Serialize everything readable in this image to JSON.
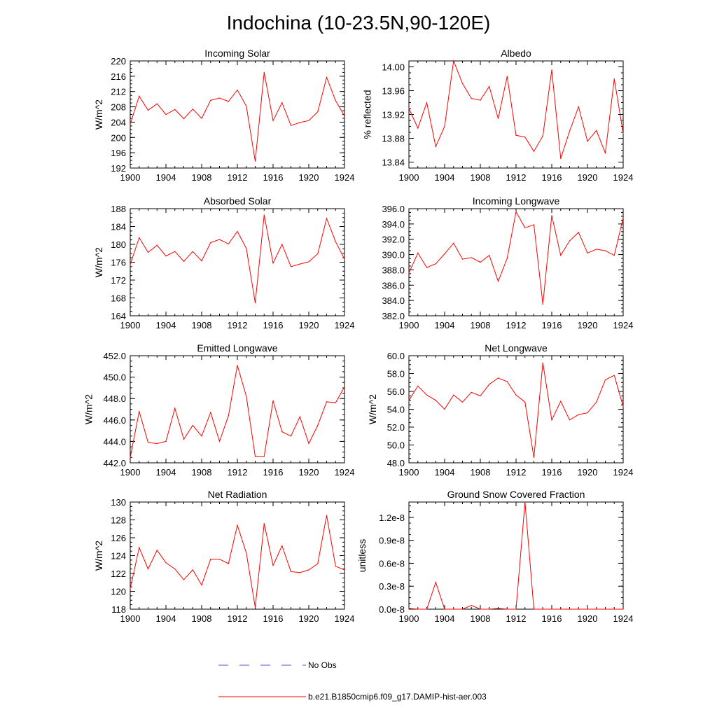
{
  "figure": {
    "title": "Indochina (10-23.5N,90-120E)",
    "legend": [
      {
        "label": "No Obs",
        "color": "#4a5bd6",
        "style": "dashed"
      },
      {
        "label": "b.e21.B1850cmip6.f09_g17.DAMIP-hist-aer.003",
        "color": "#ff0000",
        "style": "solid"
      }
    ],
    "line_color": "#ff0000"
  },
  "chart_data": [
    {
      "type": "line",
      "title": "Incoming Solar",
      "ylabel": "W/m^2",
      "xlim": [
        1900,
        1924
      ],
      "ylim": [
        192,
        220
      ],
      "xticks": [
        "1900",
        "1904",
        "1908",
        "1912",
        "1916",
        "1920",
        "1924"
      ],
      "yticks": [
        "192",
        "196",
        "200",
        "204",
        "208",
        "212",
        "216",
        "220"
      ],
      "series": [
        {
          "x": [
            1900,
            1901,
            1902,
            1903,
            1904,
            1905,
            1906,
            1907,
            1908,
            1909,
            1910,
            1911,
            1912,
            1913,
            1914,
            1915,
            1916,
            1917,
            1918,
            1919,
            1920,
            1921,
            1922,
            1923,
            1924
          ],
          "values": [
            203.5,
            210.8,
            207.1,
            208.8,
            206.0,
            207.3,
            204.9,
            207.4,
            205.0,
            209.7,
            210.3,
            209.4,
            212.4,
            208.2,
            193.8,
            217.0,
            204.4,
            209.1,
            203.1,
            203.9,
            204.4,
            206.7,
            215.7,
            209.6,
            205.6
          ]
        }
      ]
    },
    {
      "type": "line",
      "title": "Albedo",
      "ylabel": "% reflected",
      "xlim": [
        1900,
        1924
      ],
      "ylim": [
        13.83,
        14.01
      ],
      "xticks": [
        "1900",
        "1904",
        "1908",
        "1912",
        "1916",
        "1920",
        "1924"
      ],
      "yticks": [
        "13.84",
        "13.88",
        "13.92",
        "13.96",
        "14.00"
      ],
      "series": [
        {
          "x": [
            1900,
            1901,
            1902,
            1903,
            1904,
            1905,
            1906,
            1907,
            1908,
            1909,
            1910,
            1911,
            1912,
            1913,
            1914,
            1915,
            1916,
            1917,
            1918,
            1919,
            1920,
            1921,
            1922,
            1923,
            1924
          ],
          "values": [
            13.93,
            13.897,
            13.94,
            13.866,
            13.9,
            14.01,
            13.972,
            13.947,
            13.944,
            13.967,
            13.913,
            13.984,
            13.885,
            13.882,
            13.858,
            13.884,
            13.995,
            13.846,
            13.892,
            13.933,
            13.875,
            13.893,
            13.855,
            13.98,
            13.888
          ]
        }
      ]
    },
    {
      "type": "line",
      "title": "Absorbed Solar",
      "ylabel": "W/m^2",
      "xlim": [
        1900,
        1924
      ],
      "ylim": [
        164,
        188
      ],
      "xticks": [
        "1900",
        "1904",
        "1908",
        "1912",
        "1916",
        "1920",
        "1924"
      ],
      "yticks": [
        "164",
        "168",
        "172",
        "176",
        "180",
        "184",
        "188"
      ],
      "series": [
        {
          "x": [
            1900,
            1901,
            1902,
            1903,
            1904,
            1905,
            1906,
            1907,
            1908,
            1909,
            1910,
            1911,
            1912,
            1913,
            1914,
            1915,
            1916,
            1917,
            1918,
            1919,
            1920,
            1921,
            1922,
            1923,
            1924
          ],
          "values": [
            175.5,
            181.5,
            178.2,
            179.8,
            177.4,
            178.4,
            176.2,
            178.4,
            176.3,
            180.4,
            181.1,
            180.1,
            182.9,
            179.1,
            166.9,
            186.6,
            175.8,
            180.0,
            175.0,
            175.6,
            176.1,
            177.9,
            185.8,
            180.6,
            176.7
          ]
        }
      ]
    },
    {
      "type": "line",
      "title": "Incoming Longwave",
      "ylabel": "",
      "xlim": [
        1900,
        1924
      ],
      "ylim": [
        382,
        396
      ],
      "xticks": [
        "1900",
        "1904",
        "1908",
        "1912",
        "1916",
        "1920",
        "1924"
      ],
      "yticks": [
        "382.0",
        "384.0",
        "386.0",
        "388.0",
        "390.0",
        "392.0",
        "394.0",
        "396.0"
      ],
      "series": [
        {
          "x": [
            1900,
            1901,
            1902,
            1903,
            1904,
            1905,
            1906,
            1907,
            1908,
            1909,
            1910,
            1911,
            1912,
            1913,
            1914,
            1915,
            1916,
            1917,
            1918,
            1919,
            1920,
            1921,
            1922,
            1923,
            1924
          ],
          "values": [
            387.6,
            390.2,
            388.3,
            388.8,
            390.1,
            391.5,
            389.4,
            389.6,
            389.0,
            389.9,
            386.5,
            389.5,
            395.6,
            393.5,
            393.9,
            383.5,
            395.1,
            389.9,
            391.8,
            392.9,
            390.2,
            390.7,
            390.5,
            389.9,
            394.8
          ]
        }
      ]
    },
    {
      "type": "line",
      "title": "Emitted Longwave",
      "ylabel": "W/m^2",
      "xlim": [
        1900,
        1924
      ],
      "ylim": [
        442,
        452
      ],
      "xticks": [
        "1900",
        "1904",
        "1908",
        "1912",
        "1916",
        "1920",
        "1924"
      ],
      "yticks": [
        "442.0",
        "444.0",
        "446.0",
        "448.0",
        "450.0",
        "452.0"
      ],
      "series": [
        {
          "x": [
            1900,
            1901,
            1902,
            1903,
            1904,
            1905,
            1906,
            1907,
            1908,
            1909,
            1910,
            1911,
            1912,
            1913,
            1914,
            1915,
            1916,
            1917,
            1918,
            1919,
            1920,
            1921,
            1922,
            1923,
            1924
          ],
          "values": [
            442.5,
            446.8,
            443.9,
            443.8,
            444.0,
            447.1,
            444.2,
            445.5,
            444.5,
            446.7,
            444.0,
            446.4,
            451.1,
            448.2,
            442.6,
            442.6,
            447.8,
            444.9,
            444.5,
            446.3,
            443.8,
            445.5,
            447.7,
            447.6,
            449.1
          ]
        }
      ]
    },
    {
      "type": "line",
      "title": "Net Longwave",
      "ylabel": "W/m^2",
      "xlim": [
        1900,
        1924
      ],
      "ylim": [
        48,
        60
      ],
      "xticks": [
        "1900",
        "1904",
        "1908",
        "1912",
        "1916",
        "1920",
        "1924"
      ],
      "yticks": [
        "48.0",
        "50.0",
        "52.0",
        "54.0",
        "56.0",
        "58.0",
        "60.0"
      ],
      "series": [
        {
          "x": [
            1900,
            1901,
            1902,
            1903,
            1904,
            1905,
            1906,
            1907,
            1908,
            1909,
            1910,
            1911,
            1912,
            1913,
            1914,
            1915,
            1916,
            1917,
            1918,
            1919,
            1920,
            1921,
            1922,
            1923,
            1924
          ],
          "values": [
            55.0,
            56.6,
            55.6,
            55.0,
            54.0,
            55.6,
            54.8,
            55.9,
            55.5,
            56.8,
            57.5,
            57.1,
            55.6,
            54.8,
            48.6,
            59.2,
            52.8,
            54.9,
            52.8,
            53.4,
            53.6,
            54.8,
            57.3,
            57.8,
            54.3
          ]
        }
      ]
    },
    {
      "type": "line",
      "title": "Net Radiation",
      "ylabel": "W/m^2",
      "xlim": [
        1900,
        1924
      ],
      "ylim": [
        118,
        130
      ],
      "xticks": [
        "1900",
        "1904",
        "1908",
        "1912",
        "1916",
        "1920",
        "1924"
      ],
      "yticks": [
        "118",
        "120",
        "122",
        "124",
        "126",
        "128",
        "130"
      ],
      "series": [
        {
          "x": [
            1900,
            1901,
            1902,
            1903,
            1904,
            1905,
            1906,
            1907,
            1908,
            1909,
            1910,
            1911,
            1912,
            1913,
            1914,
            1915,
            1916,
            1917,
            1918,
            1919,
            1920,
            1921,
            1922,
            1923,
            1924
          ],
          "values": [
            120.3,
            124.9,
            122.5,
            124.6,
            123.2,
            122.5,
            121.3,
            122.4,
            120.7,
            123.6,
            123.6,
            123.1,
            127.4,
            124.3,
            118.2,
            127.6,
            122.9,
            125.1,
            122.2,
            122.1,
            122.4,
            123.1,
            128.5,
            122.8,
            122.4
          ]
        }
      ]
    },
    {
      "type": "line",
      "title": "Ground Snow Covered Fraction",
      "ylabel": "unitless",
      "xlim": [
        1900,
        1924
      ],
      "ylim": [
        0,
        1.4e-08
      ],
      "xticks": [
        "1900",
        "1904",
        "1908",
        "1912",
        "1916",
        "1920",
        "1924"
      ],
      "yticks": [
        "0.0e-8",
        "0.3e-8",
        "0.6e-8",
        "0.9e-8",
        "1.2e-8"
      ],
      "ytick_values": [
        0,
        3e-09,
        6e-09,
        9e-09,
        1.2e-08
      ],
      "series": [
        {
          "x": [
            1900,
            1901,
            1902,
            1903,
            1904,
            1905,
            1906,
            1907,
            1908,
            1909,
            1910,
            1911,
            1912,
            1913,
            1914,
            1915,
            1916,
            1917,
            1918,
            1919,
            1920,
            1921,
            1922,
            1923,
            1924
          ],
          "values": [
            1e-10,
            0,
            0,
            3.5e-09,
            0,
            0,
            0,
            5e-10,
            0,
            0,
            1e-10,
            0,
            0,
            1.4e-08,
            0,
            0,
            0,
            0,
            0,
            0,
            0,
            0,
            0,
            0,
            0
          ]
        }
      ]
    }
  ]
}
